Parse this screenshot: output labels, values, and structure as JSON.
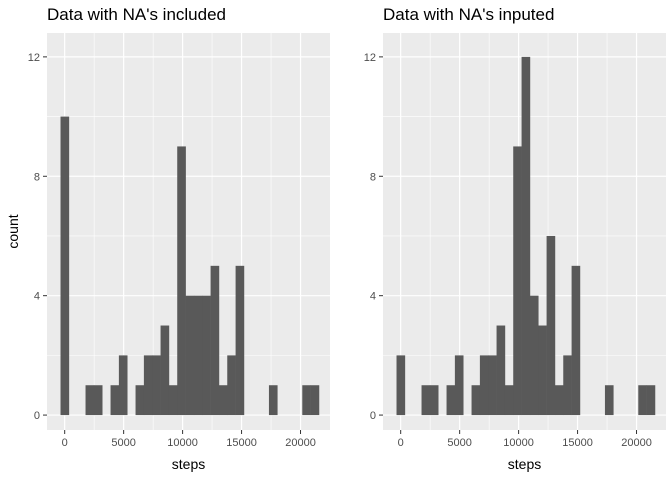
{
  "chart_data": [
    {
      "type": "bar",
      "title": "Data with NA's included",
      "xlabel": "steps",
      "ylabel": "count",
      "xlim": [
        -1500,
        22500
      ],
      "ylim": [
        -0.5,
        12.8
      ],
      "x_ticks": [
        0,
        5000,
        10000,
        15000,
        20000
      ],
      "x_tick_labels": [
        "0",
        "5000",
        "10000",
        "15000",
        "20000"
      ],
      "y_ticks": [
        0,
        4,
        8,
        12
      ],
      "y_tick_labels": [
        "0",
        "4",
        "8",
        "12"
      ],
      "bin_width": 707,
      "bin_centers": [
        0,
        707,
        1414,
        2121,
        2828,
        3535,
        4242,
        4949,
        5656,
        6363,
        7070,
        7777,
        8484,
        9191,
        9898,
        10605,
        11312,
        12019,
        12726,
        13433,
        14140,
        14847,
        15554,
        16261,
        16968,
        17675,
        18382,
        19089,
        19796,
        20503,
        21210
      ],
      "counts": [
        10,
        0,
        0,
        1,
        1,
        0,
        1,
        2,
        0,
        1,
        2,
        2,
        3,
        1,
        9,
        4,
        4,
        4,
        5,
        1,
        2,
        5,
        0,
        0,
        0,
        1,
        0,
        0,
        0,
        1,
        1
      ],
      "bar_color": "#595959",
      "panel_color": "#ebebeb",
      "grid_color": "#ffffff",
      "grid": true
    },
    {
      "type": "bar",
      "title": "Data with NA's inputed",
      "xlabel": "steps",
      "ylabel": "",
      "xlim": [
        -1500,
        22500
      ],
      "ylim": [
        -0.5,
        12.8
      ],
      "x_ticks": [
        0,
        5000,
        10000,
        15000,
        20000
      ],
      "x_tick_labels": [
        "0",
        "5000",
        "10000",
        "15000",
        "20000"
      ],
      "y_ticks": [
        0,
        4,
        8,
        12
      ],
      "y_tick_labels": [
        "0",
        "4",
        "8",
        "12"
      ],
      "bin_width": 707,
      "bin_centers": [
        0,
        707,
        1414,
        2121,
        2828,
        3535,
        4242,
        4949,
        5656,
        6363,
        7070,
        7777,
        8484,
        9191,
        9898,
        10605,
        11312,
        12019,
        12726,
        13433,
        14140,
        14847,
        15554,
        16261,
        16968,
        17675,
        18382,
        19089,
        19796,
        20503,
        21210
      ],
      "counts": [
        2,
        0,
        0,
        1,
        1,
        0,
        1,
        2,
        0,
        1,
        2,
        2,
        3,
        1,
        9,
        12,
        4,
        3,
        6,
        1,
        2,
        5,
        0,
        0,
        0,
        1,
        0,
        0,
        0,
        1,
        1
      ],
      "bar_color": "#595959",
      "panel_color": "#ebebeb",
      "grid_color": "#ffffff",
      "grid": true
    }
  ]
}
